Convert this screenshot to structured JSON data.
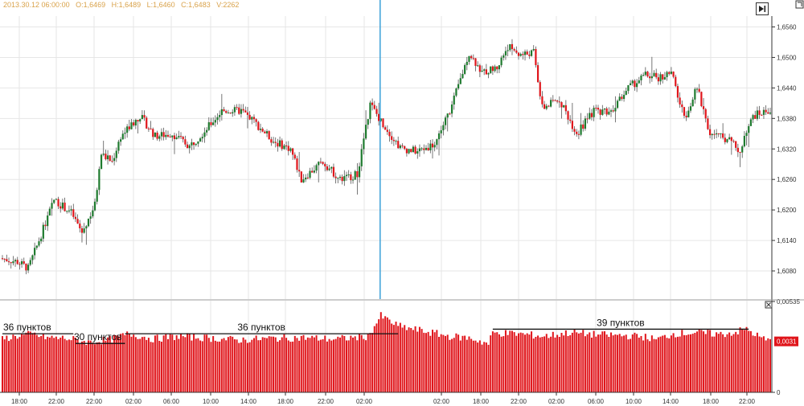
{
  "header": {
    "ohlc_text": "2013.30.12 06:00:00   O:1,6469   H:1,6489   L:1,6460   C:1,6483   V:2262"
  },
  "icons": {
    "play": "play-to-end-icon",
    "corner": "window-corner-icon",
    "close": "close-pane-icon"
  },
  "colors": {
    "bull": "#1e7a2e",
    "bear": "#e0151b",
    "volume": "#e0151b",
    "cursor": "#3aa0d8",
    "grid": "#e6e6e6"
  },
  "chart_data": [
    {
      "type": "candlestick",
      "title": "",
      "y_ticks": [
        "1,6560",
        "1,6500",
        "1,6440",
        "1,6380",
        "1,6320",
        "1,6260",
        "1,6200",
        "1,6140",
        "1,6080"
      ],
      "ylim": [
        1.604,
        1.66
      ],
      "grid": true,
      "x_ticks": [
        "18:00",
        "22:00",
        "22:00",
        "02:00",
        "06:00",
        "10:00",
        "14:00",
        "18:00",
        "22:00",
        "02:00",
        "02:00",
        "18:00",
        "22:00",
        "02:00",
        "06:00",
        "10:00",
        "14:00",
        "18:00",
        "22:00"
      ],
      "cursor_x_index": 176,
      "anchors": [
        [
          0,
          1.6105
        ],
        [
          8,
          1.6098
        ],
        [
          13,
          1.6085
        ],
        [
          18,
          1.614
        ],
        [
          25,
          1.622
        ],
        [
          33,
          1.6195
        ],
        [
          38,
          1.6155
        ],
        [
          44,
          1.621
        ],
        [
          47,
          1.631
        ],
        [
          52,
          1.6295
        ],
        [
          56,
          1.6345
        ],
        [
          65,
          1.6385
        ],
        [
          72,
          1.6345
        ],
        [
          80,
          1.635
        ],
        [
          88,
          1.6325
        ],
        [
          96,
          1.636
        ],
        [
          103,
          1.6395
        ],
        [
          112,
          1.6395
        ],
        [
          117,
          1.6378
        ],
        [
          127,
          1.6335
        ],
        [
          135,
          1.632
        ],
        [
          140,
          1.626
        ],
        [
          150,
          1.6295
        ],
        [
          158,
          1.626
        ],
        [
          166,
          1.627
        ],
        [
          172,
          1.6408
        ],
        [
          177,
          1.6375
        ],
        [
          186,
          1.6322
        ],
        [
          194,
          1.6315
        ],
        [
          202,
          1.633
        ],
        [
          210,
          1.6405
        ],
        [
          218,
          1.651
        ],
        [
          224,
          1.647
        ],
        [
          231,
          1.648
        ],
        [
          236,
          1.6522
        ],
        [
          242,
          1.6505
        ],
        [
          248,
          1.651
        ],
        [
          252,
          1.64
        ],
        [
          260,
          1.6418
        ],
        [
          268,
          1.635
        ],
        [
          276,
          1.6395
        ],
        [
          284,
          1.6395
        ],
        [
          292,
          1.644
        ],
        [
          300,
          1.6465
        ],
        [
          306,
          1.646
        ],
        [
          312,
          1.647
        ],
        [
          318,
          1.638
        ],
        [
          324,
          1.644
        ],
        [
          330,
          1.635
        ],
        [
          338,
          1.634
        ],
        [
          344,
          1.6315
        ],
        [
          350,
          1.6385
        ],
        [
          357,
          1.6395
        ]
      ]
    },
    {
      "type": "bar",
      "title": "",
      "y_ticks": [
        "0,00535",
        "0"
      ],
      "ylim": [
        0,
        0.00535
      ],
      "current_value_label": "0,0031",
      "anchors": [
        [
          0,
          0.00315
        ],
        [
          8,
          0.00335
        ],
        [
          14,
          0.00342
        ],
        [
          21,
          0.00322
        ],
        [
          30,
          0.00318
        ],
        [
          40,
          0.00295
        ],
        [
          50,
          0.0031
        ],
        [
          59,
          0.00345
        ],
        [
          70,
          0.00315
        ],
        [
          82,
          0.0033
        ],
        [
          96,
          0.0032
        ],
        [
          110,
          0.00308
        ],
        [
          125,
          0.00318
        ],
        [
          140,
          0.00322
        ],
        [
          155,
          0.00313
        ],
        [
          170,
          0.0033
        ],
        [
          176,
          0.0045
        ],
        [
          184,
          0.0039
        ],
        [
          196,
          0.0036
        ],
        [
          208,
          0.0033
        ],
        [
          218,
          0.00318
        ],
        [
          226,
          0.00285
        ],
        [
          228,
          0.0035
        ],
        [
          240,
          0.00345
        ],
        [
          252,
          0.0033
        ],
        [
          264,
          0.00352
        ],
        [
          276,
          0.0034
        ],
        [
          288,
          0.00335
        ],
        [
          298,
          0.00328
        ],
        [
          304,
          0.0031
        ],
        [
          312,
          0.00345
        ],
        [
          322,
          0.00352
        ],
        [
          334,
          0.00342
        ],
        [
          340,
          0.00352
        ],
        [
          346,
          0.00372
        ],
        [
          352,
          0.00325
        ],
        [
          357,
          0.003
        ]
      ],
      "annotations": [
        {
          "text": "36 пунктов",
          "from_index": 0,
          "to_index": 33,
          "level": 0.00345
        },
        {
          "text": "30 пунктов",
          "from_index": 34,
          "to_index": 57,
          "level": 0.00288
        },
        {
          "text": "36 пунктов",
          "from_index": 57,
          "to_index": 184,
          "level": 0.00345
        },
        {
          "text": "39 пунктов",
          "from_index": 228,
          "to_index": 347,
          "level": 0.00372
        }
      ]
    }
  ]
}
